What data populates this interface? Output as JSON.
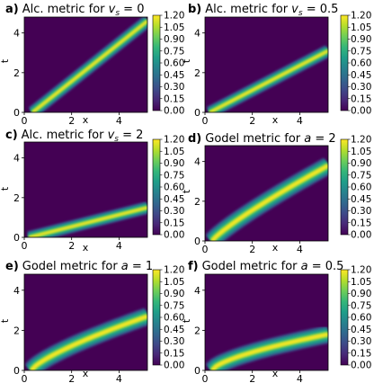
{
  "chart_data": [
    {
      "type": "heatmap",
      "panel_label": "a)",
      "title_text": "Alc. metric for ",
      "title_var": "v",
      "title_sub": "s",
      "title_value": " = 0",
      "xlabel": "x",
      "ylabel": "t",
      "xlim": [
        0,
        5.2
      ],
      "ylim": [
        0,
        4.8
      ],
      "xticks": [
        "0",
        "2",
        "4"
      ],
      "yticks": [
        "0",
        "2",
        "4"
      ],
      "band": {
        "shape": "line",
        "start": [
          0.35,
          0
        ],
        "end": [
          5.2,
          4.6
        ]
      },
      "colorbar": {
        "min": 0,
        "max": 1.2,
        "ticks": [
          "0.00",
          "0.15",
          "0.30",
          "0.45",
          "0.60",
          "0.75",
          "0.90",
          "1.05",
          "1.20"
        ]
      }
    },
    {
      "type": "heatmap",
      "panel_label": "b)",
      "title_text": "Alc. metric for ",
      "title_var": "v",
      "title_sub": "s",
      "title_value": " = 0.5",
      "xlabel": "x",
      "ylabel": "t",
      "xlim": [
        0,
        5.2
      ],
      "ylim": [
        0,
        4.8
      ],
      "xticks": [
        "0",
        "2",
        "4"
      ],
      "yticks": [
        "0",
        "2",
        "4"
      ],
      "band": {
        "shape": "line",
        "start": [
          0.2,
          0
        ],
        "end": [
          5.2,
          3.1
        ]
      },
      "colorbar": {
        "min": 0,
        "max": 1.2,
        "ticks": [
          "0.00",
          "0.15",
          "0.30",
          "0.45",
          "0.60",
          "0.75",
          "0.90",
          "1.05",
          "1.20"
        ]
      }
    },
    {
      "type": "heatmap",
      "panel_label": "c)",
      "title_text": "Alc. metric for ",
      "title_var": "v",
      "title_sub": "s",
      "title_value": " = 2",
      "xlabel": "x",
      "ylabel": "t",
      "xlim": [
        0,
        5.2
      ],
      "ylim": [
        0,
        4.8
      ],
      "xticks": [
        "0",
        "2",
        "4"
      ],
      "yticks": [
        "0",
        "2",
        "4"
      ],
      "band": {
        "shape": "line",
        "start": [
          0.2,
          0
        ],
        "end": [
          5.2,
          1.5
        ]
      },
      "colorbar": {
        "min": 0,
        "max": 1.2,
        "ticks": [
          "0.00",
          "0.15",
          "0.30",
          "0.45",
          "0.60",
          "0.75",
          "0.90",
          "1.05",
          "1.20"
        ]
      }
    },
    {
      "type": "heatmap",
      "panel_label": "d)",
      "title_text": "Godel metric for ",
      "title_var": "a",
      "title_sub": "",
      "title_value": " = 2",
      "xlabel": "x",
      "ylabel": "t",
      "xlim": [
        0,
        5.2
      ],
      "ylim": [
        0,
        4.8
      ],
      "xticks": [
        "0",
        "2",
        "4"
      ],
      "yticks": [
        "0",
        "2",
        "4"
      ],
      "band": {
        "shape": "curve",
        "x0": 0.3,
        "x1": 5.2,
        "t_end": 3.8,
        "power": 0.85
      },
      "colorbar": {
        "min": 0,
        "max": 1.2,
        "ticks": [
          "0.00",
          "0.15",
          "0.30",
          "0.45",
          "0.60",
          "0.75",
          "0.90",
          "1.05",
          "1.20"
        ]
      }
    },
    {
      "type": "heatmap",
      "panel_label": "e)",
      "title_text": "Godel metric for ",
      "title_var": "a",
      "title_sub": "",
      "title_value": " = 1",
      "xlabel": "x",
      "ylabel": "t",
      "xlim": [
        0,
        5.2
      ],
      "ylim": [
        0,
        4.8
      ],
      "xticks": [
        "0",
        "2",
        "4"
      ],
      "yticks": [
        "0",
        "2",
        "4"
      ],
      "band": {
        "shape": "curve",
        "x0": 0.3,
        "x1": 5.2,
        "t_end": 2.7,
        "power": 0.75
      },
      "colorbar": {
        "min": 0,
        "max": 1.2,
        "ticks": [
          "0.00",
          "0.15",
          "0.30",
          "0.45",
          "0.60",
          "0.75",
          "0.90",
          "1.05",
          "1.20"
        ]
      }
    },
    {
      "type": "heatmap",
      "panel_label": "f)",
      "title_text": "Godel metric for ",
      "title_var": "a",
      "title_sub": "",
      "title_value": " = 0.5",
      "xlabel": "x",
      "ylabel": "t",
      "xlim": [
        0,
        5.2
      ],
      "ylim": [
        0,
        4.8
      ],
      "xticks": [
        "0",
        "2",
        "4"
      ],
      "yticks": [
        "0",
        "2",
        "4"
      ],
      "band": {
        "shape": "curve",
        "x0": 0.3,
        "x1": 5.2,
        "t_end": 1.8,
        "power": 0.65
      },
      "colorbar": {
        "min": 0,
        "max": 1.2,
        "ticks": [
          "0.00",
          "0.15",
          "0.30",
          "0.45",
          "0.60",
          "0.75",
          "0.90",
          "1.05",
          "1.20"
        ]
      }
    }
  ],
  "colors": {
    "background_low": "#440154",
    "stops": [
      "#440154",
      "#482878",
      "#3e4a89",
      "#31688e",
      "#26828e",
      "#1f9e89",
      "#35b779",
      "#6ece58",
      "#b5de2b",
      "#fde725"
    ]
  }
}
